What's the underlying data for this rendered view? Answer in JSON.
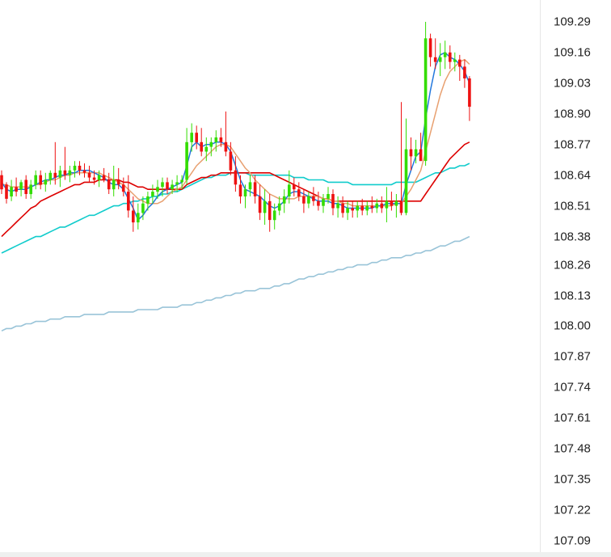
{
  "chart_data": {
    "type": "candlestick",
    "y_axis": {
      "position": "right",
      "ylim": [
        107.03,
        109.35
      ],
      "ticks": [
        "109.29",
        "109.16",
        "109.03",
        "108.90",
        "108.77",
        "108.64",
        "108.51",
        "108.38",
        "108.26",
        "108.13",
        "108.00",
        "107.87",
        "107.74",
        "107.61",
        "107.48",
        "107.35",
        "107.22",
        "107.09"
      ]
    },
    "colors": {
      "up": "#33dd00",
      "down": "#ee1111",
      "ma_short": "#2277dd",
      "ma_mid": "#e8a070",
      "ma_long": "#dd0000",
      "ma_longer": "#11cccc",
      "ma_longest": "#99c4d8"
    },
    "candles": [
      [
        108.64,
        108.66,
        108.56,
        108.58
      ],
      [
        108.6,
        108.61,
        108.52,
        108.54
      ],
      [
        108.55,
        108.62,
        108.53,
        108.59
      ],
      [
        108.59,
        108.63,
        108.55,
        108.57
      ],
      [
        108.58,
        108.62,
        108.55,
        108.61
      ],
      [
        108.62,
        108.64,
        108.54,
        108.56
      ],
      [
        108.56,
        108.62,
        108.54,
        108.6
      ],
      [
        108.6,
        108.66,
        108.58,
        108.64
      ],
      [
        108.64,
        108.66,
        108.58,
        108.6
      ],
      [
        108.6,
        108.65,
        108.57,
        108.62
      ],
      [
        108.62,
        108.66,
        108.6,
        108.65
      ],
      [
        108.65,
        108.78,
        108.6,
        108.63
      ],
      [
        108.63,
        108.68,
        108.59,
        108.66
      ],
      [
        108.66,
        108.76,
        108.62,
        108.64
      ],
      [
        108.64,
        108.68,
        108.61,
        108.66
      ],
      [
        108.66,
        108.7,
        108.63,
        108.68
      ],
      [
        108.68,
        108.7,
        108.64,
        108.66
      ],
      [
        108.66,
        108.69,
        108.63,
        108.65
      ],
      [
        108.65,
        108.68,
        108.61,
        108.63
      ],
      [
        108.63,
        108.66,
        108.6,
        108.62
      ],
      [
        108.62,
        108.66,
        108.59,
        108.64
      ],
      [
        108.64,
        108.67,
        108.61,
        108.62
      ],
      [
        108.62,
        108.65,
        108.56,
        108.58
      ],
      [
        108.58,
        108.68,
        108.55,
        108.62
      ],
      [
        108.62,
        108.67,
        108.58,
        108.6
      ],
      [
        108.6,
        108.63,
        108.55,
        108.57
      ],
      [
        108.57,
        108.64,
        108.46,
        108.49
      ],
      [
        108.49,
        108.55,
        108.4,
        108.44
      ],
      [
        108.44,
        108.52,
        108.41,
        108.48
      ],
      [
        108.48,
        108.55,
        108.45,
        108.52
      ],
      [
        108.52,
        108.57,
        108.49,
        108.55
      ],
      [
        108.55,
        108.6,
        108.52,
        108.57
      ],
      [
        108.57,
        108.62,
        108.54,
        108.59
      ],
      [
        108.59,
        108.63,
        108.55,
        108.61
      ],
      [
        108.61,
        108.63,
        108.56,
        108.58
      ],
      [
        108.58,
        108.62,
        108.56,
        108.6
      ],
      [
        108.6,
        108.64,
        108.57,
        108.61
      ],
      [
        108.61,
        108.64,
        108.58,
        108.62
      ],
      [
        108.62,
        108.84,
        108.6,
        108.78
      ],
      [
        108.78,
        108.86,
        108.74,
        108.82
      ],
      [
        108.82,
        108.85,
        108.75,
        108.78
      ],
      [
        108.78,
        108.84,
        108.72,
        108.74
      ],
      [
        108.74,
        108.8,
        108.7,
        108.76
      ],
      [
        108.76,
        108.8,
        108.72,
        108.78
      ],
      [
        108.78,
        108.83,
        108.74,
        108.8
      ],
      [
        108.8,
        108.84,
        108.76,
        108.78
      ],
      [
        108.78,
        108.91,
        108.72,
        108.74
      ],
      [
        108.74,
        108.78,
        108.64,
        108.66
      ],
      [
        108.66,
        108.72,
        108.57,
        108.6
      ],
      [
        108.6,
        108.64,
        108.52,
        108.55
      ],
      [
        108.55,
        108.6,
        108.5,
        108.58
      ],
      [
        108.58,
        108.64,
        108.55,
        108.61
      ],
      [
        108.61,
        108.64,
        108.52,
        108.55
      ],
      [
        108.55,
        108.6,
        108.45,
        108.48
      ],
      [
        108.48,
        108.58,
        108.43,
        108.53
      ],
      [
        108.53,
        108.56,
        108.4,
        108.45
      ],
      [
        108.45,
        108.52,
        108.41,
        108.49
      ],
      [
        108.49,
        108.55,
        108.47,
        108.52
      ],
      [
        108.52,
        108.58,
        108.48,
        108.55
      ],
      [
        108.55,
        108.66,
        108.52,
        108.6
      ],
      [
        108.6,
        108.63,
        108.55,
        108.58
      ],
      [
        108.58,
        108.61,
        108.53,
        108.55
      ],
      [
        108.55,
        108.58,
        108.48,
        108.52
      ],
      [
        108.52,
        108.57,
        108.5,
        108.55
      ],
      [
        108.55,
        108.59,
        108.51,
        108.53
      ],
      [
        108.53,
        108.57,
        108.49,
        108.51
      ],
      [
        108.51,
        108.56,
        108.48,
        108.54
      ],
      [
        108.54,
        108.59,
        108.52,
        108.56
      ],
      [
        108.56,
        108.58,
        108.47,
        108.5
      ],
      [
        108.5,
        108.55,
        108.46,
        108.52
      ],
      [
        108.52,
        108.55,
        108.46,
        108.48
      ],
      [
        108.48,
        108.53,
        108.45,
        108.5
      ],
      [
        108.5,
        108.53,
        108.46,
        108.49
      ],
      [
        108.49,
        108.53,
        108.46,
        108.51
      ],
      [
        108.51,
        108.54,
        108.47,
        108.49
      ],
      [
        108.49,
        108.53,
        108.47,
        108.51
      ],
      [
        108.51,
        108.55,
        108.48,
        108.5
      ],
      [
        108.5,
        108.54,
        108.48,
        108.52
      ],
      [
        108.52,
        108.55,
        108.48,
        108.5
      ],
      [
        108.5,
        108.59,
        108.44,
        108.53
      ],
      [
        108.53,
        108.57,
        108.49,
        108.51
      ],
      [
        108.51,
        108.56,
        108.46,
        108.53
      ],
      [
        108.53,
        108.95,
        108.47,
        108.48
      ],
      [
        108.48,
        108.88,
        108.47,
        108.75
      ],
      [
        108.75,
        108.8,
        108.66,
        108.72
      ],
      [
        108.72,
        108.79,
        108.69,
        108.75
      ],
      [
        108.75,
        108.82,
        108.71,
        108.7
      ],
      [
        108.7,
        109.29,
        108.68,
        109.22
      ],
      [
        109.22,
        109.24,
        109.1,
        109.14
      ],
      [
        109.14,
        109.22,
        109.09,
        109.12
      ],
      [
        109.12,
        109.2,
        109.06,
        109.14
      ],
      [
        109.14,
        109.21,
        109.09,
        109.16
      ],
      [
        109.16,
        109.19,
        109.09,
        109.12
      ],
      [
        109.12,
        109.16,
        109.08,
        109.13
      ],
      [
        109.13,
        109.15,
        109.04,
        109.1
      ],
      [
        109.1,
        109.13,
        109.01,
        109.05
      ],
      [
        109.05,
        109.06,
        108.87,
        108.93
      ]
    ],
    "ma_short": [
      108.61,
      108.58,
      108.57,
      108.58,
      108.58,
      108.58,
      108.59,
      108.6,
      108.61,
      108.62,
      108.62,
      108.63,
      108.64,
      108.64,
      108.65,
      108.65,
      108.66,
      108.66,
      108.66,
      108.65,
      108.64,
      108.63,
      108.61,
      108.6,
      108.6,
      108.58,
      108.54,
      108.5,
      108.45,
      108.47,
      108.5,
      108.52,
      108.55,
      108.57,
      108.58,
      108.59,
      108.6,
      108.61,
      108.68,
      108.76,
      108.78,
      108.76,
      108.77,
      108.77,
      108.78,
      108.78,
      108.77,
      108.74,
      108.68,
      108.62,
      108.58,
      108.57,
      108.56,
      108.55,
      108.53,
      108.51,
      108.5,
      108.51,
      108.53,
      108.56,
      108.57,
      108.57,
      108.56,
      108.55,
      108.54,
      108.53,
      108.53,
      108.53,
      108.52,
      108.52,
      108.51,
      108.5,
      108.5,
      108.5,
      108.5,
      108.5,
      108.5,
      108.51,
      108.51,
      108.52,
      108.52,
      108.52,
      108.52,
      108.6,
      108.66,
      108.72,
      108.74,
      108.88,
      109.0,
      109.1,
      109.15,
      109.16,
      109.14,
      109.13,
      109.11,
      109.08,
      109.03
    ],
    "ma_mid": [
      108.6,
      108.6,
      108.59,
      108.59,
      108.59,
      108.59,
      108.59,
      108.6,
      108.6,
      108.61,
      108.62,
      108.62,
      108.63,
      108.64,
      108.64,
      108.65,
      108.65,
      108.65,
      108.65,
      108.65,
      108.65,
      108.64,
      108.63,
      108.62,
      108.61,
      108.6,
      108.58,
      108.56,
      108.54,
      108.53,
      108.52,
      108.52,
      108.52,
      108.53,
      108.55,
      108.57,
      108.58,
      108.59,
      108.62,
      108.65,
      108.68,
      108.7,
      108.72,
      108.74,
      108.76,
      108.77,
      108.77,
      108.76,
      108.73,
      108.7,
      108.67,
      108.65,
      108.62,
      108.6,
      108.58,
      108.56,
      108.55,
      108.54,
      108.54,
      108.54,
      108.54,
      108.55,
      108.55,
      108.55,
      108.55,
      108.55,
      108.54,
      108.54,
      108.53,
      108.53,
      108.52,
      108.52,
      108.51,
      108.51,
      108.51,
      108.51,
      108.51,
      108.51,
      108.51,
      108.51,
      108.51,
      108.52,
      108.52,
      108.55,
      108.58,
      108.62,
      108.66,
      108.74,
      108.82,
      108.9,
      108.98,
      109.04,
      109.08,
      109.1,
      109.12,
      109.13,
      109.11
    ],
    "ma_long": [
      108.38,
      108.4,
      108.42,
      108.44,
      108.46,
      108.48,
      108.5,
      108.51,
      108.53,
      108.54,
      108.55,
      108.56,
      108.57,
      108.58,
      108.59,
      108.6,
      108.6,
      108.61,
      108.61,
      108.61,
      108.62,
      108.62,
      108.62,
      108.62,
      108.62,
      108.61,
      108.61,
      108.6,
      108.59,
      108.59,
      108.58,
      108.58,
      108.58,
      108.58,
      108.58,
      108.58,
      108.58,
      108.58,
      108.6,
      108.61,
      108.62,
      108.63,
      108.63,
      108.64,
      108.64,
      108.65,
      108.65,
      108.65,
      108.65,
      108.65,
      108.65,
      108.65,
      108.65,
      108.65,
      108.65,
      108.65,
      108.64,
      108.63,
      108.62,
      108.61,
      108.6,
      108.59,
      108.58,
      108.57,
      108.56,
      108.55,
      108.54,
      108.54,
      108.53,
      108.53,
      108.53,
      108.53,
      108.53,
      108.53,
      108.53,
      108.53,
      108.53,
      108.53,
      108.53,
      108.53,
      108.53,
      108.53,
      108.53,
      108.53,
      108.53,
      108.53,
      108.53,
      108.56,
      108.59,
      108.62,
      108.65,
      108.68,
      108.71,
      108.73,
      108.75,
      108.77,
      108.78
    ],
    "ma_longer": [
      108.31,
      108.32,
      108.33,
      108.34,
      108.35,
      108.36,
      108.37,
      108.38,
      108.38,
      108.39,
      108.4,
      108.41,
      108.42,
      108.42,
      108.43,
      108.44,
      108.45,
      108.46,
      108.47,
      108.47,
      108.48,
      108.49,
      108.5,
      108.51,
      108.51,
      108.52,
      108.52,
      108.53,
      108.53,
      108.54,
      108.54,
      108.55,
      108.55,
      108.56,
      108.56,
      108.57,
      108.57,
      108.58,
      108.59,
      108.6,
      108.61,
      108.62,
      108.63,
      108.63,
      108.64,
      108.64,
      108.64,
      108.65,
      108.65,
      108.65,
      108.65,
      108.64,
      108.64,
      108.64,
      108.64,
      108.64,
      108.64,
      108.64,
      108.64,
      108.64,
      108.63,
      108.63,
      108.63,
      108.62,
      108.62,
      108.62,
      108.62,
      108.61,
      108.61,
      108.61,
      108.61,
      108.61,
      108.6,
      108.6,
      108.6,
      108.6,
      108.6,
      108.6,
      108.6,
      108.6,
      108.6,
      108.61,
      108.61,
      108.61,
      108.61,
      108.61,
      108.62,
      108.63,
      108.64,
      108.65,
      108.65,
      108.66,
      108.67,
      108.67,
      108.68,
      108.68,
      108.69
    ],
    "ma_longest": [
      107.98,
      107.99,
      107.99,
      108.0,
      108.0,
      108.01,
      108.01,
      108.02,
      108.02,
      108.02,
      108.03,
      108.03,
      108.03,
      108.04,
      108.04,
      108.04,
      108.04,
      108.05,
      108.05,
      108.05,
      108.05,
      108.05,
      108.06,
      108.06,
      108.06,
      108.06,
      108.06,
      108.06,
      108.07,
      108.07,
      108.07,
      108.07,
      108.07,
      108.08,
      108.08,
      108.08,
      108.08,
      108.09,
      108.09,
      108.09,
      108.1,
      108.1,
      108.11,
      108.11,
      108.12,
      108.12,
      108.13,
      108.13,
      108.14,
      108.14,
      108.15,
      108.15,
      108.15,
      108.16,
      108.16,
      108.16,
      108.17,
      108.17,
      108.18,
      108.18,
      108.19,
      108.2,
      108.2,
      108.21,
      108.21,
      108.22,
      108.22,
      108.23,
      108.23,
      108.24,
      108.24,
      108.25,
      108.25,
      108.26,
      108.26,
      108.26,
      108.27,
      108.27,
      108.28,
      108.28,
      108.29,
      108.29,
      108.29,
      108.3,
      108.3,
      108.31,
      108.31,
      108.32,
      108.32,
      108.33,
      108.34,
      108.34,
      108.35,
      108.36,
      108.36,
      108.37,
      108.38
    ]
  }
}
